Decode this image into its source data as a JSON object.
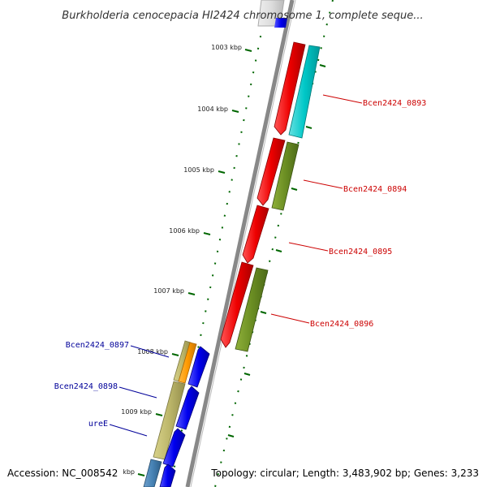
{
  "title": "Burkholderia cenocepacia HI2424 chromosome 1, complete seque...",
  "footer": {
    "accession": "Accession: NC_008542",
    "summary": "Topology: circular; Length: 3,483,902 bp; Genes: 3,233"
  },
  "ticks": [
    "1003 kbp",
    "1004 kbp",
    "1005 kbp",
    "1006 kbp",
    "1007 kbp",
    "1008 kbp",
    "1009 kbp",
    "kbp"
  ],
  "gene_labels": [
    {
      "text": "Bcen2424_0893",
      "strand": "reverse",
      "color": "#cc0000"
    },
    {
      "text": "Bcen2424_0894",
      "strand": "reverse",
      "color": "#cc0000"
    },
    {
      "text": "Bcen2424_0895",
      "strand": "reverse",
      "color": "#cc0000"
    },
    {
      "text": "Bcen2424_0896",
      "strand": "reverse",
      "color": "#cc0000"
    },
    {
      "text": "Bcen2424_0897",
      "strand": "forward",
      "color": "#000099"
    },
    {
      "text": "Bcen2424_0898",
      "strand": "forward",
      "color": "#000099"
    },
    {
      "text": "ureE",
      "strand": "forward",
      "color": "#000099"
    }
  ],
  "colors": {
    "backbone": "#888888",
    "tick": "#006600",
    "gene_reverse": "#ee0000",
    "gene_forward": "#0000ee",
    "cog_cyan": "#00cccc",
    "cog_olive": "#6b8e23",
    "cog_khaki": "#bdb76b",
    "cog_orange": "#ff9900",
    "cog_steel": "#4682b4"
  }
}
